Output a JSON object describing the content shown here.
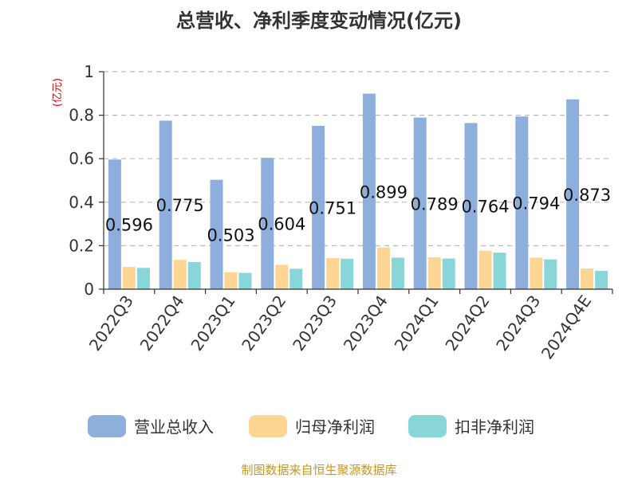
{
  "chart_data": {
    "type": "bar",
    "title": "总营收、净利季度变动情况(亿元)",
    "unit_label": "(亿元)",
    "categories": [
      "2022Q3",
      "2022Q4",
      "2023Q1",
      "2023Q2",
      "2023Q3",
      "2023Q4",
      "2024Q1",
      "2024Q2",
      "2024Q3",
      "2024Q4E"
    ],
    "series": [
      {
        "name": "营业总收入",
        "color": "#8eaedb",
        "values": [
          0.596,
          0.775,
          0.503,
          0.604,
          0.751,
          0.899,
          0.789,
          0.764,
          0.794,
          0.873
        ],
        "show_labels": true
      },
      {
        "name": "归母净利润",
        "color": "#fdd693",
        "values": [
          0.102,
          0.135,
          0.078,
          0.112,
          0.143,
          0.192,
          0.147,
          0.177,
          0.145,
          0.095
        ],
        "show_labels": false
      },
      {
        "name": "扣非净利润",
        "color": "#88d6d8",
        "values": [
          0.098,
          0.125,
          0.075,
          0.094,
          0.14,
          0.145,
          0.141,
          0.168,
          0.137,
          0.084
        ],
        "show_labels": false
      }
    ],
    "data_labels": [
      "0.596",
      "0.775",
      "0.503",
      "0.604",
      "0.751",
      "0.899",
      "0.789",
      "0.764",
      "0.794",
      "0.873"
    ],
    "ylim": [
      0,
      1
    ],
    "yticks": [
      0,
      0.2,
      0.4,
      0.6,
      0.8,
      1
    ],
    "ytick_labels": [
      "0",
      "0.2",
      "0.4",
      "0.6",
      "0.8",
      "1"
    ],
    "grid": true,
    "legend_position": "bottom"
  },
  "source": "制图数据来自恒生聚源数据库"
}
